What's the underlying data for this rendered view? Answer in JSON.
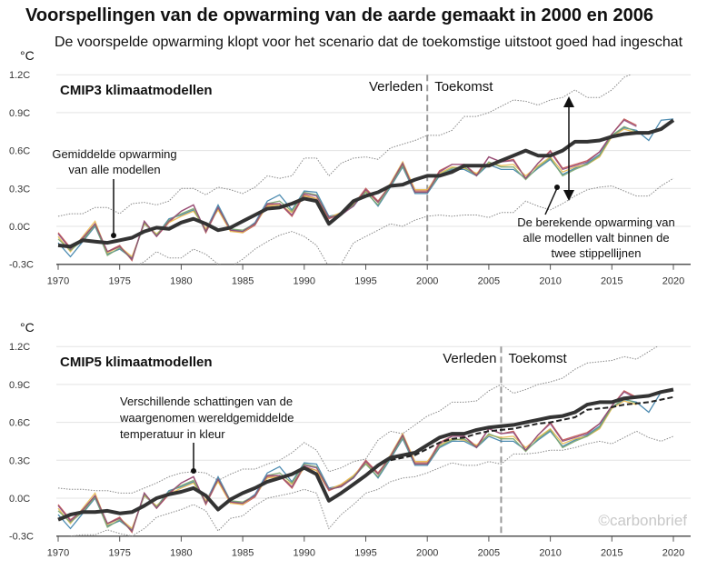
{
  "header": {
    "title": "Voorspellingen van de opwarming van de aarde gemaakt in 2000 en 2006",
    "subtitle": "De voorspelde opwarming klopt voor het scenario dat de toekomstige uitstoot goed had ingeschat"
  },
  "watermark": "©carbonbrief",
  "colors": {
    "observed": [
      "#3b7fa8",
      "#c0504d",
      "#e8b84a",
      "#7aa56b",
      "#8e4a7a"
    ],
    "model_mean": "#333333",
    "bounds": "#888888",
    "grid": "#e3e3e3"
  },
  "chart_data": [
    {
      "type": "line",
      "title": "CMIP3 klimaatmodellen",
      "ylabel": "°C",
      "xlim": [
        1970,
        2020
      ],
      "ylim": [
        -0.3,
        1.2
      ],
      "xticks": [
        "1970",
        "1975",
        "1980",
        "1985",
        "1990",
        "1995",
        "2000",
        "2005",
        "2010",
        "2015",
        "2020"
      ],
      "yticks": [
        "-0.3C",
        "0.0C",
        "0.3C",
        "0.6C",
        "0.9C",
        "1.2C"
      ],
      "grid": true,
      "divider_year": 2000,
      "divider_labels": {
        "left": "Verleden",
        "right": "Toekomst"
      },
      "annotations": [
        {
          "lines": [
            "Gemiddelde opwarming",
            "van alle modellen"
          ]
        },
        {
          "lines": [
            "De berekende opwarming van",
            "alle modellen valt binnen de",
            "twee stippellijnen"
          ]
        }
      ],
      "x_start": 1970,
      "model_mean": [
        -0.15,
        -0.16,
        -0.11,
        -0.12,
        -0.13,
        -0.11,
        -0.09,
        -0.04,
        -0.01,
        -0.02,
        0.03,
        0.06,
        0.02,
        -0.03,
        -0.01,
        0.04,
        0.09,
        0.14,
        0.15,
        0.18,
        0.22,
        0.2,
        0.02,
        0.1,
        0.2,
        0.24,
        0.27,
        0.32,
        0.33,
        0.37,
        0.4,
        0.4,
        0.43,
        0.48,
        0.48,
        0.48,
        0.52,
        0.56,
        0.6,
        0.56,
        0.56,
        0.6,
        0.67,
        0.67,
        0.68,
        0.71,
        0.73,
        0.74,
        0.74,
        0.77,
        0.84
      ],
      "upper_bound": [
        0.08,
        0.1,
        0.1,
        0.15,
        0.15,
        0.1,
        0.18,
        0.19,
        0.17,
        0.2,
        0.3,
        0.3,
        0.25,
        0.31,
        0.29,
        0.26,
        0.31,
        0.4,
        0.38,
        0.4,
        0.54,
        0.54,
        0.4,
        0.5,
        0.54,
        0.55,
        0.53,
        0.62,
        0.65,
        0.68,
        0.72,
        0.72,
        0.76,
        0.87,
        0.87,
        0.9,
        0.95,
        1.0,
        0.99,
        0.96,
        1.0,
        1.02,
        1.08,
        1.02,
        1.02,
        1.08,
        1.18,
        1.22,
        1.28,
        1.32,
        1.36
      ],
      "lower_bound": [
        -0.38,
        -0.36,
        -0.34,
        -0.36,
        -0.34,
        -0.36,
        -0.33,
        -0.28,
        -0.2,
        -0.25,
        -0.25,
        -0.18,
        -0.22,
        -0.3,
        -0.32,
        -0.26,
        -0.18,
        -0.12,
        -0.07,
        -0.04,
        -0.08,
        -0.15,
        -0.32,
        -0.3,
        -0.13,
        -0.08,
        -0.03,
        0.02,
        0.0,
        0.05,
        0.08,
        0.09,
        0.08,
        0.09,
        0.09,
        0.07,
        0.11,
        0.11,
        0.2,
        0.16,
        0.13,
        0.18,
        0.24,
        0.29,
        0.31,
        0.32,
        0.28,
        0.24,
        0.24,
        0.32,
        0.38
      ],
      "observed": [
        [
          -0.13,
          -0.24,
          -0.12,
          0.0,
          -0.22,
          -0.18,
          -0.25,
          0.02,
          -0.07,
          0.06,
          0.09,
          0.13,
          -0.03,
          0.17,
          -0.02,
          -0.04,
          0.03,
          0.2,
          0.25,
          0.13,
          0.28,
          0.27,
          0.08,
          0.1,
          0.16,
          0.28,
          0.16,
          0.31,
          0.47,
          0.26,
          0.26,
          0.4,
          0.45,
          0.45,
          0.4,
          0.49,
          0.45,
          0.45,
          0.38,
          0.46,
          0.53,
          0.41,
          0.46,
          0.5,
          0.57,
          0.72,
          0.78,
          0.76,
          0.68,
          0.84,
          0.85
        ],
        [
          -0.05,
          -0.17,
          -0.1,
          0.02,
          -0.2,
          -0.15,
          -0.27,
          0.04,
          -0.08,
          0.03,
          0.12,
          0.17,
          -0.05,
          0.14,
          -0.03,
          -0.05,
          0.01,
          0.17,
          0.18,
          0.08,
          0.25,
          0.22,
          0.06,
          0.1,
          0.17,
          0.3,
          0.2,
          0.33,
          0.49,
          0.28,
          0.28,
          0.44,
          0.49,
          0.49,
          0.41,
          0.55,
          0.51,
          0.53,
          0.38,
          0.5,
          0.6,
          0.46,
          0.49,
          0.52,
          0.59,
          0.73,
          0.85,
          0.8
        ],
        [
          -0.08,
          -0.2,
          -0.08,
          0.04,
          -0.21,
          -0.16,
          -0.24,
          0.02,
          -0.06,
          0.03,
          0.08,
          0.12,
          -0.02,
          0.13,
          -0.04,
          -0.05,
          0.02,
          0.16,
          0.17,
          0.11,
          0.24,
          0.22,
          0.07,
          0.11,
          0.18,
          0.28,
          0.19,
          0.34,
          0.51,
          0.29,
          0.29,
          0.42,
          0.47,
          0.46,
          0.42,
          0.5,
          0.48,
          0.49,
          0.4,
          0.48,
          0.55,
          0.43,
          0.47,
          0.49,
          0.55,
          0.71,
          0.77,
          0.74
        ],
        [
          -0.1,
          -0.19,
          -0.11,
          0.01,
          -0.23,
          -0.17,
          -0.26,
          0.03,
          -0.07,
          0.05,
          0.1,
          0.14,
          -0.04,
          0.15,
          -0.02,
          -0.03,
          0.02,
          0.18,
          0.2,
          0.12,
          0.27,
          0.25,
          0.07,
          0.09,
          0.17,
          0.27,
          0.17,
          0.32,
          0.48,
          0.27,
          0.27,
          0.41,
          0.46,
          0.47,
          0.4,
          0.51,
          0.47,
          0.47,
          0.37,
          0.47,
          0.54,
          0.4,
          0.45,
          0.49,
          0.56,
          0.72,
          0.79,
          0.75
        ],
        [
          -0.06,
          -0.18,
          -0.09,
          0.02,
          -0.2,
          -0.16,
          -0.26,
          0.04,
          -0.08,
          0.04,
          0.12,
          0.17,
          -0.04,
          0.15,
          -0.03,
          -0.04,
          0.02,
          0.18,
          0.18,
          0.09,
          0.26,
          0.24,
          0.07,
          0.09,
          0.16,
          0.29,
          0.19,
          0.33,
          0.5,
          0.27,
          0.27,
          0.43,
          0.49,
          0.49,
          0.4,
          0.55,
          0.51,
          0.52,
          0.38,
          0.5,
          0.59,
          0.45,
          0.48,
          0.51,
          0.59,
          0.73,
          0.84,
          0.79
        ]
      ]
    },
    {
      "type": "line",
      "title": "CMIP5 klimaatmodellen",
      "ylabel": "°C",
      "xlim": [
        1970,
        2020
      ],
      "ylim": [
        -0.3,
        1.2
      ],
      "xticks": [
        "1970",
        "1975",
        "1980",
        "1985",
        "1990",
        "1995",
        "2000",
        "2005",
        "2010",
        "2015",
        "2020"
      ],
      "yticks": [
        "-0.3C",
        "0.0C",
        "0.3C",
        "0.6C",
        "0.9C",
        "1.2C"
      ],
      "grid": true,
      "divider_year": 2006,
      "divider_labels": {
        "left": "Verleden",
        "right": "Toekomst"
      },
      "annotations": [
        {
          "lines": [
            "Verschillende schattingen van de",
            "waargenomen wereldgemiddelde",
            "temperatuur in kleur"
          ]
        }
      ],
      "x_start": 1970,
      "model_mean": [
        -0.17,
        -0.13,
        -0.11,
        -0.11,
        -0.1,
        -0.12,
        -0.11,
        -0.06,
        0.0,
        0.03,
        0.05,
        0.08,
        0.02,
        -0.09,
        -0.01,
        0.04,
        0.08,
        0.13,
        0.16,
        0.19,
        0.24,
        0.19,
        -0.02,
        0.04,
        0.11,
        0.18,
        0.26,
        0.32,
        0.34,
        0.36,
        0.42,
        0.48,
        0.51,
        0.51,
        0.54,
        0.56,
        0.57,
        0.58,
        0.6,
        0.62,
        0.64,
        0.65,
        0.68,
        0.74,
        0.76,
        0.76,
        0.79,
        0.8,
        0.81,
        0.84,
        0.86
      ],
      "dashed_start": 1997,
      "dashed_mean": [
        0.3,
        0.32,
        0.34,
        0.39,
        0.44,
        0.47,
        0.48,
        0.51,
        0.53,
        0.54,
        0.55,
        0.57,
        0.59,
        0.6,
        0.62,
        0.64,
        0.7,
        0.71,
        0.72,
        0.74,
        0.75,
        0.76,
        0.78,
        0.8
      ],
      "upper_bound": [
        0.08,
        0.07,
        0.07,
        0.06,
        0.06,
        0.04,
        0.04,
        0.08,
        0.12,
        0.17,
        0.2,
        0.21,
        0.2,
        0.14,
        0.19,
        0.23,
        0.23,
        0.27,
        0.3,
        0.36,
        0.44,
        0.38,
        0.21,
        0.24,
        0.29,
        0.31,
        0.46,
        0.53,
        0.51,
        0.58,
        0.65,
        0.69,
        0.76,
        0.76,
        0.77,
        0.85,
        0.9,
        0.83,
        0.86,
        0.9,
        0.92,
        0.95,
        1.02,
        1.07,
        1.08,
        1.09,
        1.12,
        1.1,
        1.16,
        1.22,
        1.28
      ],
      "lower_bound": [
        -0.34,
        -0.3,
        -0.29,
        -0.29,
        -0.25,
        -0.28,
        -0.3,
        -0.24,
        -0.15,
        -0.12,
        -0.09,
        -0.05,
        -0.1,
        -0.26,
        -0.16,
        -0.14,
        -0.06,
        0.0,
        0.02,
        0.04,
        0.07,
        0.04,
        -0.24,
        -0.13,
        -0.05,
        0.04,
        0.07,
        0.13,
        0.16,
        0.17,
        0.2,
        0.24,
        0.28,
        0.26,
        0.26,
        0.29,
        0.27,
        0.35,
        0.35,
        0.36,
        0.38,
        0.38,
        0.4,
        0.43,
        0.45,
        0.43,
        0.48,
        0.53,
        0.48,
        0.45,
        0.49
      ],
      "observed": [
        [
          -0.13,
          -0.24,
          -0.12,
          0.0,
          -0.22,
          -0.18,
          -0.25,
          0.02,
          -0.07,
          0.06,
          0.09,
          0.13,
          -0.03,
          0.17,
          -0.02,
          -0.04,
          0.03,
          0.2,
          0.25,
          0.13,
          0.28,
          0.27,
          0.08,
          0.1,
          0.16,
          0.28,
          0.16,
          0.31,
          0.47,
          0.26,
          0.26,
          0.4,
          0.45,
          0.45,
          0.4,
          0.49,
          0.45,
          0.45,
          0.38,
          0.46,
          0.53,
          0.41,
          0.46,
          0.5,
          0.57,
          0.72,
          0.78,
          0.76,
          0.68,
          0.84,
          0.85
        ],
        [
          -0.05,
          -0.17,
          -0.1,
          0.02,
          -0.2,
          -0.15,
          -0.27,
          0.04,
          -0.08,
          0.03,
          0.12,
          0.17,
          -0.05,
          0.14,
          -0.03,
          -0.05,
          0.01,
          0.17,
          0.18,
          0.08,
          0.25,
          0.22,
          0.06,
          0.1,
          0.17,
          0.3,
          0.2,
          0.33,
          0.49,
          0.28,
          0.28,
          0.44,
          0.49,
          0.49,
          0.41,
          0.55,
          0.51,
          0.53,
          0.38,
          0.5,
          0.6,
          0.46,
          0.49,
          0.52,
          0.59,
          0.73,
          0.85,
          0.8
        ],
        [
          -0.08,
          -0.2,
          -0.08,
          0.04,
          -0.21,
          -0.16,
          -0.24,
          0.02,
          -0.06,
          0.03,
          0.08,
          0.12,
          -0.02,
          0.13,
          -0.04,
          -0.05,
          0.02,
          0.16,
          0.17,
          0.11,
          0.24,
          0.22,
          0.07,
          0.11,
          0.18,
          0.28,
          0.19,
          0.34,
          0.51,
          0.29,
          0.29,
          0.42,
          0.47,
          0.46,
          0.42,
          0.5,
          0.48,
          0.49,
          0.4,
          0.48,
          0.55,
          0.43,
          0.47,
          0.49,
          0.55,
          0.71,
          0.77,
          0.74
        ],
        [
          -0.1,
          -0.19,
          -0.11,
          0.01,
          -0.23,
          -0.17,
          -0.26,
          0.03,
          -0.07,
          0.05,
          0.1,
          0.14,
          -0.04,
          0.15,
          -0.02,
          -0.03,
          0.02,
          0.18,
          0.2,
          0.12,
          0.27,
          0.25,
          0.07,
          0.09,
          0.17,
          0.27,
          0.17,
          0.32,
          0.48,
          0.27,
          0.27,
          0.41,
          0.46,
          0.47,
          0.4,
          0.51,
          0.47,
          0.47,
          0.37,
          0.47,
          0.54,
          0.4,
          0.45,
          0.49,
          0.56,
          0.72,
          0.79,
          0.75
        ],
        [
          -0.06,
          -0.18,
          -0.09,
          0.02,
          -0.2,
          -0.16,
          -0.26,
          0.04,
          -0.08,
          0.04,
          0.12,
          0.17,
          -0.04,
          0.15,
          -0.03,
          -0.04,
          0.02,
          0.18,
          0.18,
          0.09,
          0.26,
          0.24,
          0.07,
          0.09,
          0.16,
          0.29,
          0.19,
          0.33,
          0.5,
          0.27,
          0.27,
          0.43,
          0.49,
          0.49,
          0.4,
          0.55,
          0.51,
          0.52,
          0.38,
          0.5,
          0.59,
          0.45,
          0.48,
          0.51,
          0.59,
          0.73,
          0.84,
          0.79
        ]
      ]
    }
  ]
}
